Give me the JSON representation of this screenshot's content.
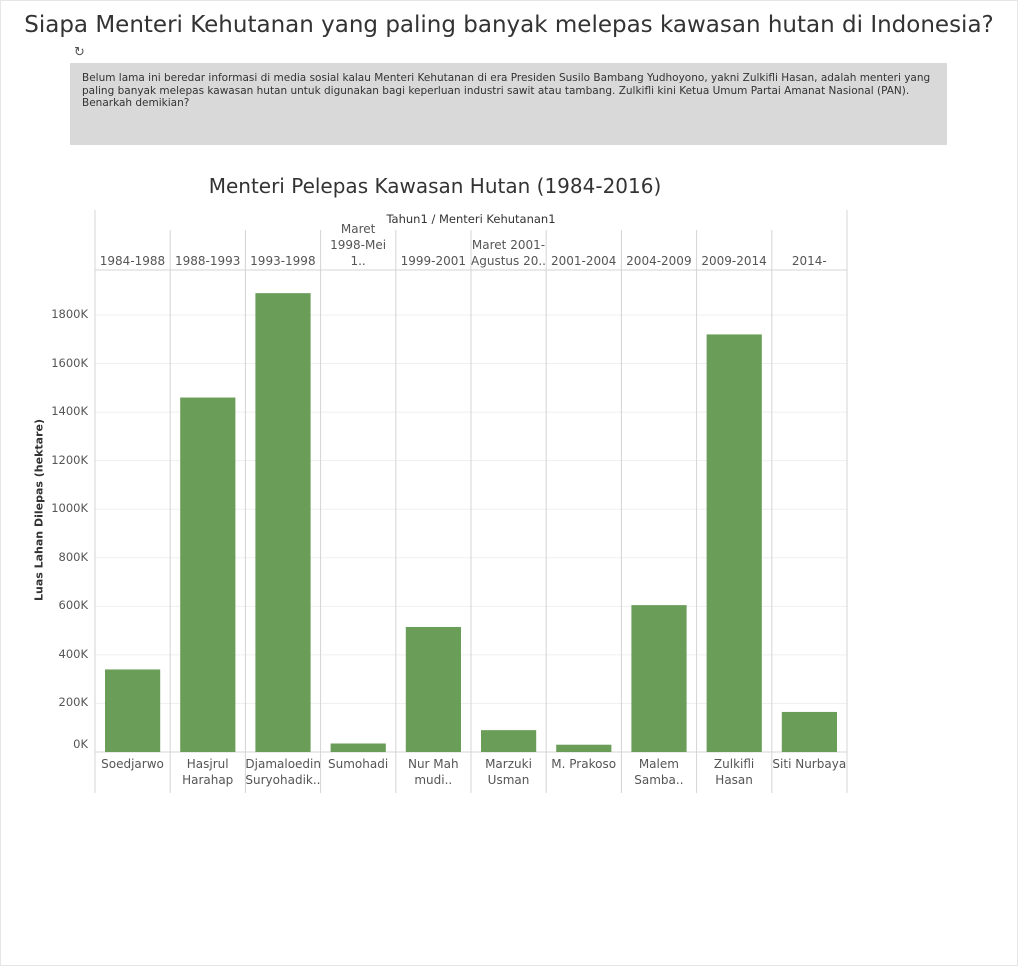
{
  "page": {
    "title": "Siapa Menteri Kehutanan yang paling banyak melepas kawasan hutan di Indonesia?",
    "description": "Belum lama ini beredar informasi di media sosial kalau Menteri Kehutanan di era Presiden Susilo Bambang Yudhoyono, yakni Zulkifli Hasan, adalah menteri yang paling banyak melepas kawasan hutan untuk digunakan bagi keperluan industri sawit atau tambang. Zulkifli kini Ketua Umum Partai Amanat Nasional (PAN). Benarkah demikian?",
    "refresh_icon": "refresh-icon"
  },
  "chart_data": {
    "type": "bar",
    "title": "Menteri Pelepas Kawasan Hutan (1984-2016)",
    "header": "Tahun1 / Menteri Kehutanan1",
    "ylabel": "Luas Lahan Dilepas (hektare)",
    "ylim": [
      0,
      2000000
    ],
    "yticks": [
      0,
      200000,
      400000,
      600000,
      800000,
      1000000,
      1200000,
      1400000,
      1600000,
      1800000
    ],
    "ytick_labels": [
      "0K",
      "200K",
      "400K",
      "600K",
      "800K",
      "1000K",
      "1200K",
      "1400K",
      "1600K",
      "1800K"
    ],
    "periods": [
      "1984-1988",
      "1988-1993",
      "1993-1998",
      "Maret\n1998-Mei 1..",
      "1999-2001",
      "Maret 2001-\nAgustus 20..",
      "2001-2004",
      "2004-2009",
      "2009-2014",
      "2014-"
    ],
    "categories": [
      "Soedjarwo",
      "Hasjrul\nHarahap",
      "Djamaloedin\nSuryohadik..",
      "Sumohadi",
      "Nur Mah\nmudi..",
      "Marzuki\nUsman",
      "M. Prakoso",
      "Malem\nSamba..",
      "Zulkifli\nHasan",
      "Siti Nurbaya"
    ],
    "values": [
      340000,
      1460000,
      1890000,
      35000,
      515000,
      90000,
      30000,
      605000,
      1720000,
      165000
    ],
    "bar_color": "#6a9d58",
    "grid": true
  }
}
